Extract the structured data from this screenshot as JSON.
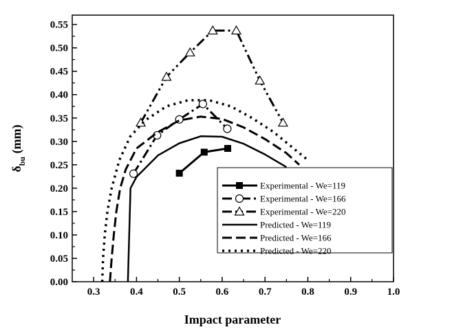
{
  "chart_data": {
    "type": "line",
    "xlabel": "Impact parameter",
    "ylabel_main": "δ",
    "ylabel_sub": "bu",
    "ylabel_unit": " (mm)",
    "xlim": [
      0.25,
      1.0
    ],
    "ylim": [
      0.0,
      0.57
    ],
    "x_ticks": [
      "0.3",
      "0.4",
      "0.5",
      "0.6",
      "0.7",
      "0.8",
      "0.9",
      "1.0"
    ],
    "y_ticks": [
      "0.00",
      "0.05",
      "0.10",
      "0.15",
      "0.20",
      "0.25",
      "0.30",
      "0.35",
      "0.40",
      "0.45",
      "0.50",
      "0.55"
    ],
    "grid": false,
    "legend_position": "bottom-right",
    "series": [
      {
        "name": "Experimental - We=119",
        "style": "solid-thick",
        "marker": "filled-square",
        "points": [
          [
            0.5,
            0.232
          ],
          [
            0.558,
            0.277
          ],
          [
            0.613,
            0.285
          ]
        ]
      },
      {
        "name": "Experimental - We=166",
        "style": "dashdot",
        "marker": "open-circle",
        "points": [
          [
            0.393,
            0.231
          ],
          [
            0.448,
            0.313
          ],
          [
            0.5,
            0.347
          ],
          [
            0.555,
            0.38
          ],
          [
            0.612,
            0.327
          ]
        ]
      },
      {
        "name": "Experimental - We=220",
        "style": "dashdotdot",
        "marker": "open-triangle",
        "points": [
          [
            0.41,
            0.34
          ],
          [
            0.47,
            0.438
          ],
          [
            0.525,
            0.49
          ],
          [
            0.578,
            0.537
          ],
          [
            0.633,
            0.537
          ],
          [
            0.688,
            0.43
          ],
          [
            0.742,
            0.34
          ]
        ]
      },
      {
        "name": "Predicted - We=119",
        "style": "solid",
        "marker": "none",
        "points": [
          [
            0.38,
            0.0
          ],
          [
            0.383,
            0.1
          ],
          [
            0.386,
            0.2
          ],
          [
            0.4,
            0.224
          ],
          [
            0.45,
            0.27
          ],
          [
            0.5,
            0.296
          ],
          [
            0.55,
            0.311
          ],
          [
            0.6,
            0.31
          ],
          [
            0.65,
            0.295
          ],
          [
            0.7,
            0.272
          ],
          [
            0.75,
            0.245
          ]
        ]
      },
      {
        "name": "Predicted - We=166",
        "style": "dashed",
        "marker": "none",
        "points": [
          [
            0.338,
            0.0
          ],
          [
            0.342,
            0.05
          ],
          [
            0.347,
            0.1
          ],
          [
            0.353,
            0.15
          ],
          [
            0.362,
            0.2
          ],
          [
            0.375,
            0.24
          ],
          [
            0.4,
            0.285
          ],
          [
            0.45,
            0.32
          ],
          [
            0.5,
            0.345
          ],
          [
            0.55,
            0.353
          ],
          [
            0.6,
            0.348
          ],
          [
            0.65,
            0.33
          ],
          [
            0.7,
            0.305
          ],
          [
            0.75,
            0.275
          ],
          [
            0.78,
            0.25
          ]
        ]
      },
      {
        "name": "Predicted - We=220",
        "style": "dotted",
        "marker": "none",
        "points": [
          [
            0.32,
            0.0
          ],
          [
            0.322,
            0.05
          ],
          [
            0.326,
            0.1
          ],
          [
            0.332,
            0.15
          ],
          [
            0.342,
            0.2
          ],
          [
            0.36,
            0.26
          ],
          [
            0.385,
            0.31
          ],
          [
            0.42,
            0.345
          ],
          [
            0.47,
            0.375
          ],
          [
            0.52,
            0.388
          ],
          [
            0.57,
            0.388
          ],
          [
            0.62,
            0.375
          ],
          [
            0.67,
            0.35
          ],
          [
            0.72,
            0.32
          ],
          [
            0.76,
            0.29
          ],
          [
            0.8,
            0.26
          ]
        ]
      }
    ]
  }
}
